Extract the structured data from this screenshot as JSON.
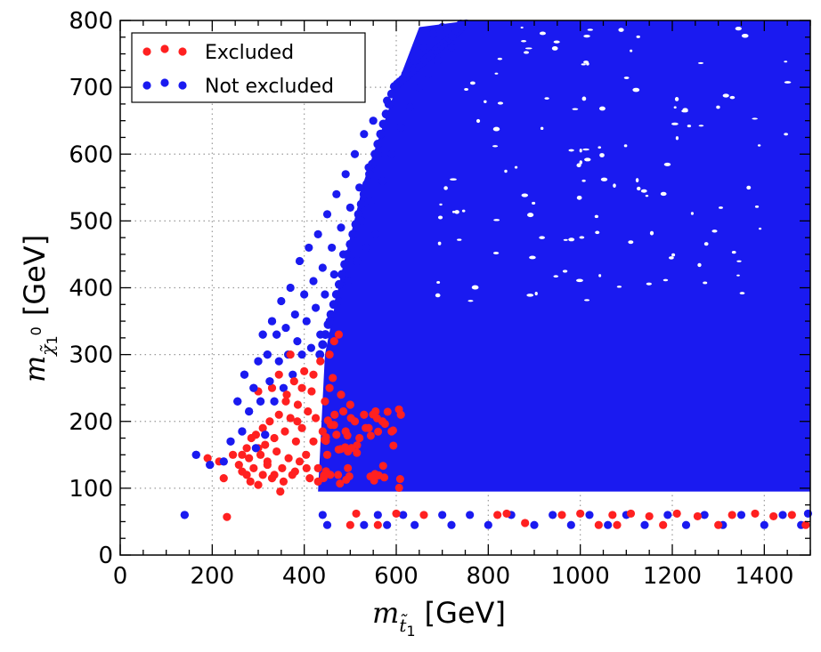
{
  "chart_data": {
    "type": "scatter",
    "xlim": [
      0,
      1500
    ],
    "ylim": [
      0,
      800
    ],
    "grid": true,
    "grid_style": "dotted",
    "legend_position": "top-left",
    "x_ticks": [
      0,
      200,
      400,
      600,
      800,
      1000,
      1200,
      1400
    ],
    "y_ticks": [
      0,
      100,
      200,
      300,
      400,
      500,
      600,
      700,
      800
    ],
    "x_tick_labels": [
      "0",
      "200",
      "400",
      "600",
      "800",
      "1000",
      "1200",
      "1400"
    ],
    "y_tick_labels": [
      "0",
      "100",
      "200",
      "300",
      "400",
      "500",
      "600",
      "700",
      "800"
    ],
    "xlabel": {
      "symbol": "m",
      "subscript": "t̃",
      "subscript_index": "1",
      "unit": "[GeV]"
    },
    "ylabel": {
      "symbol": "m",
      "subscript": "χ̃",
      "subscript_index": "1",
      "superscript": "0",
      "unit": "[GeV]"
    },
    "series": [
      {
        "name": "Excluded",
        "color": "#ff2020",
        "points": [
          [
            190,
            145
          ],
          [
            215,
            140
          ],
          [
            225,
            115
          ],
          [
            232,
            57
          ],
          [
            245,
            150
          ],
          [
            258,
            135
          ],
          [
            265,
            125
          ],
          [
            275,
            160
          ],
          [
            280,
            145
          ],
          [
            283,
            110
          ],
          [
            290,
            130
          ],
          [
            295,
            180
          ],
          [
            300,
            105
          ],
          [
            305,
            150
          ],
          [
            310,
            120
          ],
          [
            315,
            165
          ],
          [
            320,
            140
          ],
          [
            325,
            200
          ],
          [
            330,
            115
          ],
          [
            335,
            175
          ],
          [
            340,
            155
          ],
          [
            345,
            210
          ],
          [
            348,
            95
          ],
          [
            352,
            130
          ],
          [
            358,
            185
          ],
          [
            362,
            240
          ],
          [
            366,
            145
          ],
          [
            370,
            205
          ],
          [
            374,
            120
          ],
          [
            378,
            260
          ],
          [
            382,
            170
          ],
          [
            386,
            225
          ],
          [
            390,
            140
          ],
          [
            395,
            190
          ],
          [
            400,
            275
          ],
          [
            404,
            150
          ],
          [
            408,
            215
          ],
          [
            412,
            115
          ],
          [
            416,
            245
          ],
          [
            420,
            170
          ],
          [
            425,
            205
          ],
          [
            430,
            130
          ],
          [
            435,
            290
          ],
          [
            440,
            185
          ],
          [
            445,
            230
          ],
          [
            450,
            150
          ],
          [
            455,
            300
          ],
          [
            458,
            195
          ],
          [
            462,
            265
          ],
          [
            466,
            210
          ],
          [
            470,
            180
          ],
          [
            475,
            330
          ],
          [
            480,
            240
          ],
          [
            485,
            215
          ],
          [
            490,
            185
          ],
          [
            495,
            155
          ],
          [
            500,
            225
          ],
          [
            510,
            200
          ],
          [
            520,
            175
          ],
          [
            530,
            210
          ],
          [
            540,
            190
          ],
          [
            555,
            215
          ],
          [
            570,
            200
          ],
          [
            590,
            185
          ],
          [
            610,
            210
          ],
          [
            500,
            45
          ],
          [
            513,
            62
          ],
          [
            560,
            45
          ],
          [
            600,
            62
          ],
          [
            660,
            60
          ],
          [
            820,
            60
          ],
          [
            840,
            62
          ],
          [
            880,
            48
          ],
          [
            960,
            60
          ],
          [
            1000,
            62
          ],
          [
            1040,
            45
          ],
          [
            1070,
            60
          ],
          [
            1080,
            45
          ],
          [
            1110,
            62
          ],
          [
            1150,
            58
          ],
          [
            1180,
            45
          ],
          [
            1210,
            62
          ],
          [
            1255,
            58
          ],
          [
            1300,
            45
          ],
          [
            1330,
            60
          ],
          [
            1380,
            62
          ],
          [
            1420,
            58
          ],
          [
            1460,
            60
          ],
          [
            1490,
            45
          ],
          [
            330,
            250
          ],
          [
            345,
            270
          ],
          [
            360,
            230
          ],
          [
            310,
            190
          ],
          [
            300,
            245
          ],
          [
            285,
            175
          ],
          [
            370,
            300
          ],
          [
            395,
            250
          ],
          [
            420,
            270
          ],
          [
            455,
            250
          ],
          [
            465,
            320
          ],
          [
            320,
            135
          ],
          [
            335,
            120
          ],
          [
            355,
            110
          ],
          [
            380,
            125
          ],
          [
            405,
            130
          ],
          [
            430,
            110
          ],
          [
            275,
            120
          ],
          [
            265,
            150
          ],
          [
            300,
            160
          ],
          [
            385,
            200
          ]
        ]
      },
      {
        "name": "Not excluded",
        "color": "#1a1af0",
        "points": [
          [
            140,
            60
          ],
          [
            165,
            150
          ],
          [
            195,
            135
          ],
          [
            225,
            140
          ],
          [
            240,
            170
          ],
          [
            255,
            230
          ],
          [
            265,
            185
          ],
          [
            270,
            270
          ],
          [
            280,
            215
          ],
          [
            290,
            250
          ],
          [
            295,
            160
          ],
          [
            300,
            290
          ],
          [
            305,
            230
          ],
          [
            310,
            330
          ],
          [
            315,
            180
          ],
          [
            320,
            300
          ],
          [
            325,
            260
          ],
          [
            330,
            350
          ],
          [
            335,
            230
          ],
          [
            340,
            330
          ],
          [
            345,
            290
          ],
          [
            350,
            380
          ],
          [
            355,
            250
          ],
          [
            360,
            340
          ],
          [
            365,
            300
          ],
          [
            370,
            400
          ],
          [
            375,
            270
          ],
          [
            380,
            360
          ],
          [
            385,
            320
          ],
          [
            390,
            440
          ],
          [
            395,
            300
          ],
          [
            400,
            390
          ],
          [
            405,
            350
          ],
          [
            410,
            460
          ],
          [
            415,
            310
          ],
          [
            420,
            410
          ],
          [
            425,
            370
          ],
          [
            430,
            480
          ],
          [
            435,
            330
          ],
          [
            440,
            430
          ],
          [
            445,
            390
          ],
          [
            450,
            510
          ],
          [
            455,
            350
          ],
          [
            460,
            460
          ],
          [
            465,
            420
          ],
          [
            470,
            540
          ],
          [
            475,
            380
          ],
          [
            480,
            490
          ],
          [
            485,
            450
          ],
          [
            490,
            570
          ],
          [
            495,
            410
          ],
          [
            500,
            520
          ],
          [
            505,
            480
          ],
          [
            510,
            600
          ],
          [
            515,
            440
          ],
          [
            520,
            550
          ],
          [
            525,
            500
          ],
          [
            530,
            630
          ],
          [
            535,
            460
          ],
          [
            540,
            580
          ],
          [
            545,
            530
          ],
          [
            550,
            650
          ],
          [
            555,
            480
          ],
          [
            560,
            600
          ],
          [
            570,
            560
          ],
          [
            580,
            680
          ],
          [
            590,
            600
          ],
          [
            600,
            700
          ],
          [
            610,
            640
          ],
          [
            620,
            720
          ],
          [
            630,
            670
          ],
          [
            640,
            740
          ],
          [
            650,
            700
          ],
          [
            660,
            760
          ],
          [
            670,
            720
          ],
          [
            680,
            780
          ],
          [
            690,
            740
          ],
          [
            700,
            790
          ],
          [
            720,
            760
          ],
          [
            740,
            795
          ],
          [
            440,
            60
          ],
          [
            450,
            45
          ],
          [
            530,
            45
          ],
          [
            560,
            60
          ],
          [
            580,
            45
          ],
          [
            615,
            60
          ],
          [
            640,
            45
          ],
          [
            700,
            60
          ],
          [
            720,
            45
          ],
          [
            760,
            60
          ],
          [
            800,
            45
          ],
          [
            850,
            60
          ],
          [
            900,
            45
          ],
          [
            940,
            60
          ],
          [
            980,
            45
          ],
          [
            1020,
            60
          ],
          [
            1060,
            45
          ],
          [
            1100,
            60
          ],
          [
            1140,
            45
          ],
          [
            1190,
            60
          ],
          [
            1230,
            45
          ],
          [
            1270,
            60
          ],
          [
            1310,
            45
          ],
          [
            1350,
            60
          ],
          [
            1400,
            45
          ],
          [
            1440,
            60
          ],
          [
            1480,
            45
          ],
          [
            1495,
            62
          ]
        ]
      }
    ]
  }
}
